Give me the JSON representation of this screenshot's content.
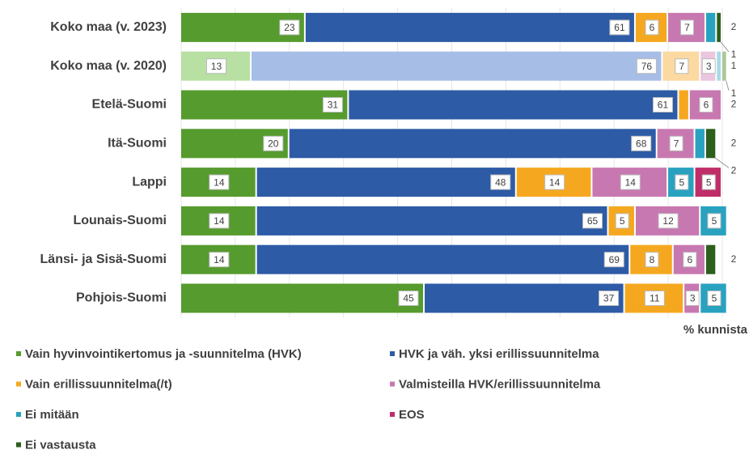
{
  "chart_data": {
    "type": "stacked-barh",
    "x_label": "% kunnista",
    "categories": [
      "Koko maa (v. 2023)",
      "Koko maa (v. 2020)",
      "Etelä-Suomi",
      "Itä-Suomi",
      "Lappi",
      "Lounais-Suomi",
      "Länsi- ja Sisä-Suomi",
      "Pohjois-Suomi"
    ],
    "faded_category": 1,
    "series": [
      {
        "name": "Vain hyvinvointikertomus ja -suunnitelma (HVK)",
        "color": "#569b2e",
        "faded_color": "#b8e0a2",
        "values": [
          23,
          13,
          31,
          20,
          14,
          14,
          14,
          45
        ]
      },
      {
        "name": "HVK ja väh. yksi erillissuunnitelma",
        "color": "#2d5ba6",
        "faded_color": "#a6bde6",
        "values": [
          61,
          76,
          61,
          68,
          48,
          65,
          69,
          37
        ]
      },
      {
        "name": "Vain erillissuunnitelma(/t)",
        "color": "#f5a81f",
        "faded_color": "#fbd9a0",
        "values": [
          6,
          7,
          2,
          null,
          14,
          5,
          8,
          11
        ]
      },
      {
        "name": "Valmisteilla HVK/erillissuunnitelma",
        "color": "#c878b0",
        "faded_color": "#ebc6df",
        "values": [
          7,
          3,
          6,
          7,
          14,
          12,
          6,
          3
        ]
      },
      {
        "name": "Ei mitään",
        "color": "#29a2c0",
        "faded_color": "#a8d9e6",
        "values": [
          2,
          1,
          null,
          2,
          5,
          5,
          null,
          5
        ]
      },
      {
        "name": "EOS",
        "color": "#c02e69",
        "faded_color": "#e6a3bf",
        "values": [
          null,
          null,
          null,
          null,
          5,
          null,
          null,
          null
        ]
      },
      {
        "name": "Ei vastausta",
        "color": "#2c5e1c",
        "faded_color": "#a9c99c",
        "values": [
          1,
          1,
          null,
          2,
          null,
          null,
          2,
          null
        ]
      }
    ],
    "xlim": [
      0,
      100
    ],
    "xticks": [
      0,
      10,
      20,
      30,
      40,
      50,
      60,
      70,
      80,
      90,
      100
    ],
    "grid": true
  }
}
